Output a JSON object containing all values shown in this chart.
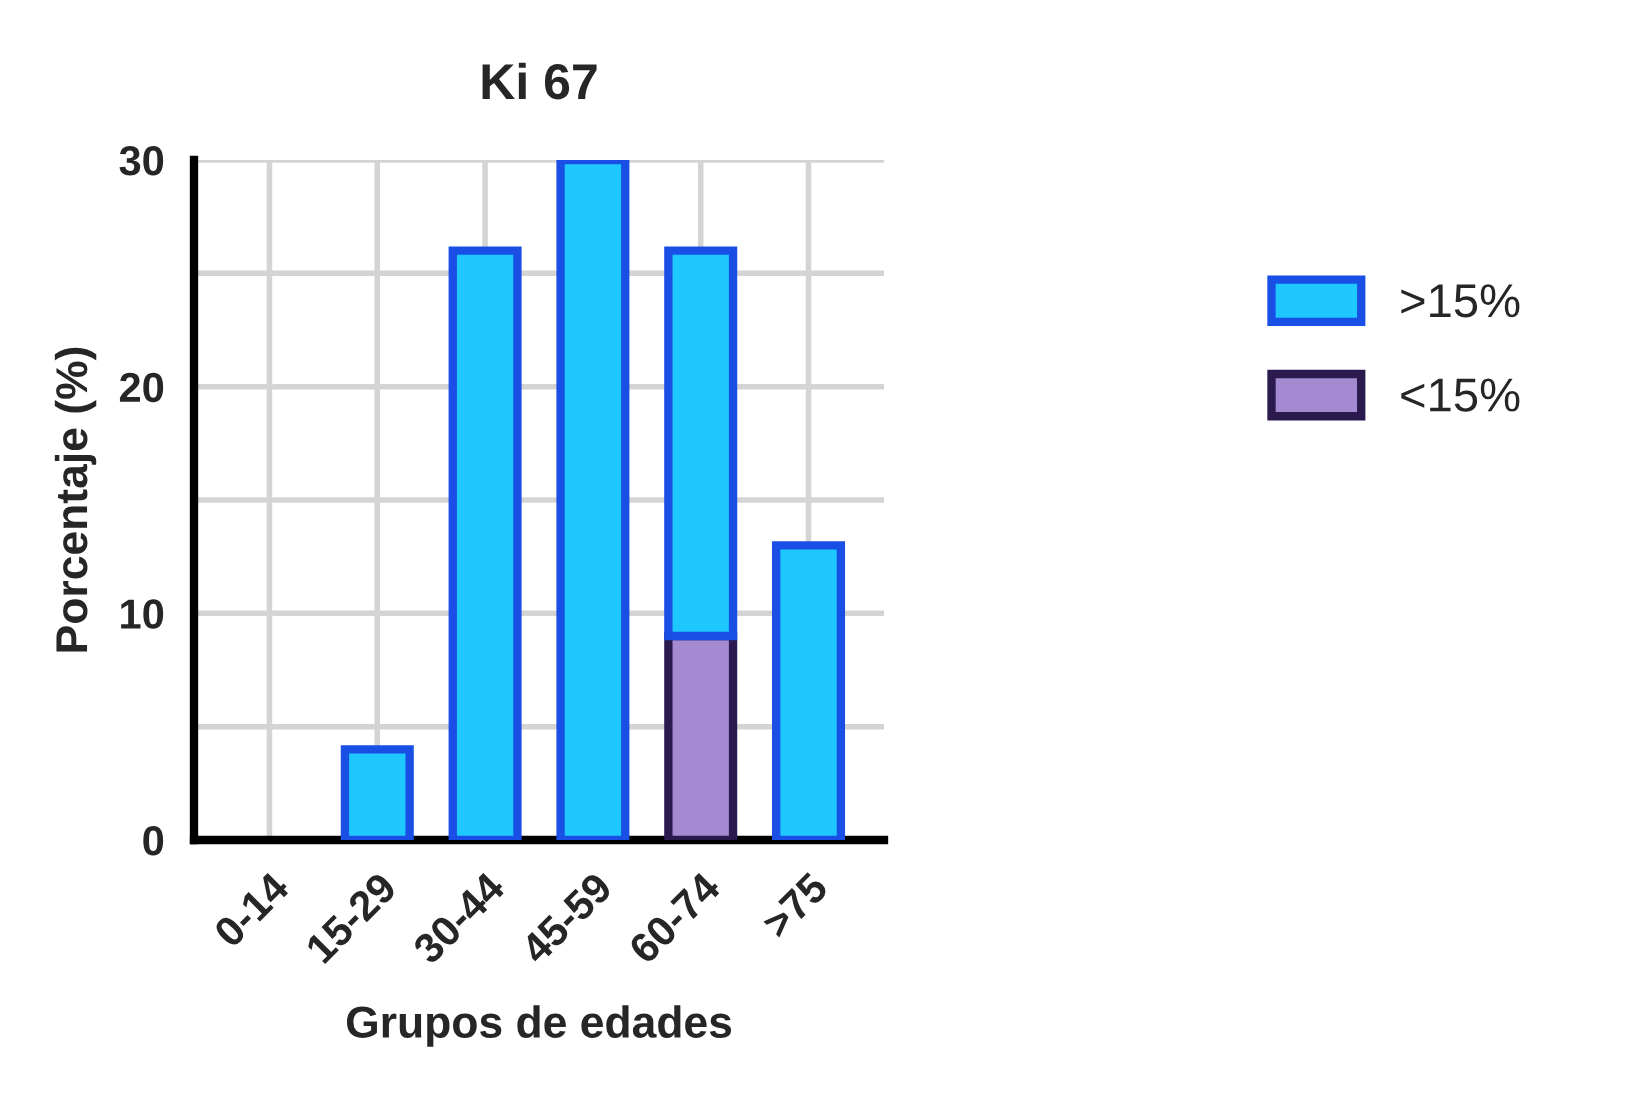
{
  "chart_data": {
    "type": "bar",
    "title": "Ki 67",
    "xlabel": "Grupos de edades",
    "ylabel": "Porcentaje (%)",
    "categories": [
      "0-14",
      "15-29",
      "30-44",
      "45-59",
      "60-74",
      ">75"
    ],
    "stacked": true,
    "series": [
      {
        "name": "<15%",
        "color": "#a48bd1",
        "values": [
          0,
          0,
          0,
          0,
          9,
          0
        ]
      },
      {
        "name": ">15%",
        "color": "#1ec8fe",
        "values": [
          0,
          4,
          26,
          30,
          17,
          13
        ]
      }
    ],
    "ylim": [
      0,
      30
    ],
    "yticks": [
      0,
      {
        "value": 5,
        "label": null
      },
      10,
      {
        "value": 15,
        "label": null
      },
      20,
      {
        "value": 25,
        "label": null
      },
      30
    ],
    "grid": true,
    "legend": "right"
  }
}
